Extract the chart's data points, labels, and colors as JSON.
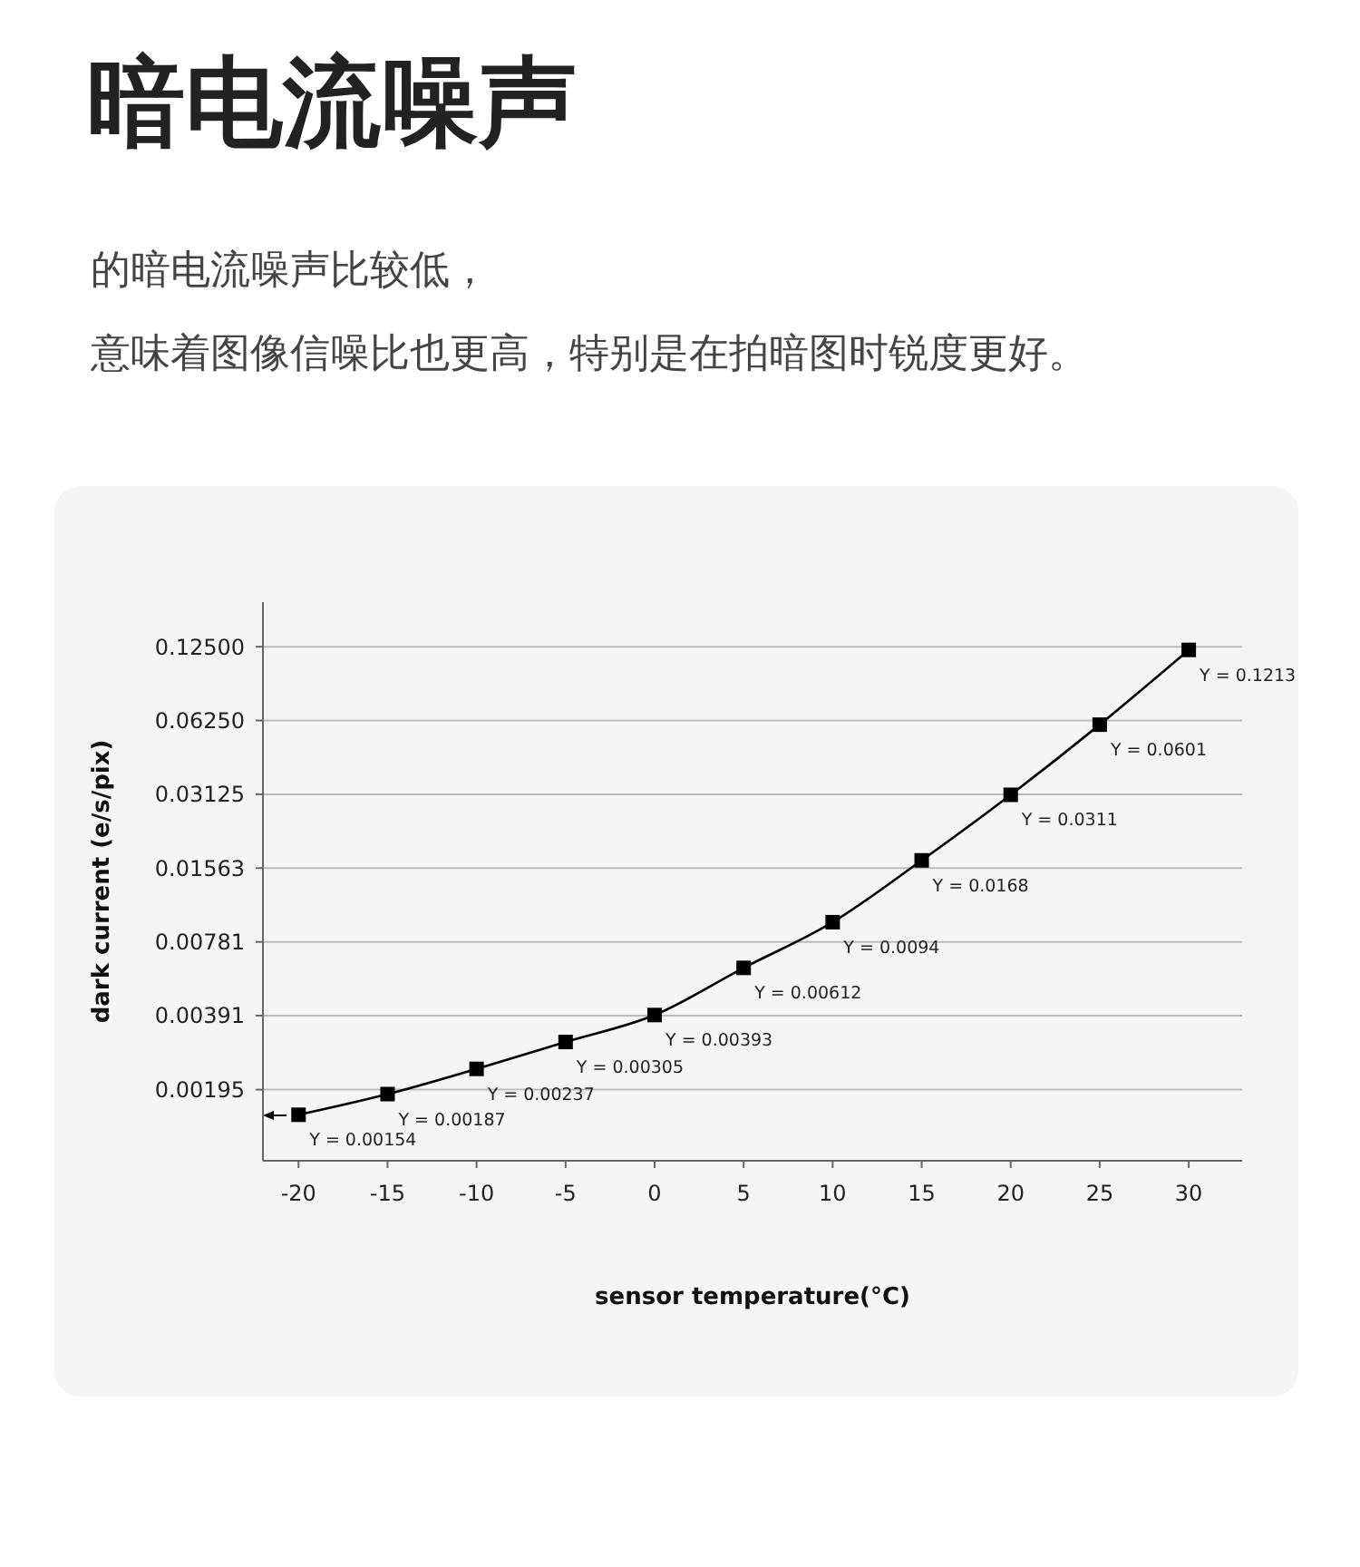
{
  "chart_data": {
    "type": "line",
    "title": "暗电流噪声",
    "subtitle": "的暗电流噪声比较低，",
    "annotations": [
      "意味着图像信噪比也更高，特别是在拍暗图时锐度更好。"
    ],
    "xlabel": "sensor temperature(°C)",
    "ylabel": "dark current (e/s/pix)",
    "x": [
      -20,
      -15,
      -10,
      -5,
      0,
      5,
      10,
      15,
      20,
      25,
      30
    ],
    "series": [
      {
        "color": "#000000",
        "values": [
          0.00154,
          0.00187,
          0.00237,
          0.00305,
          0.00393,
          0.00612,
          0.0094,
          0.0168,
          0.0311,
          0.0601,
          0.1213
        ],
        "value_labels": [
          "Y = 0.00154",
          "Y = 0.00187",
          "Y = 0.00237",
          "Y = 0.00305",
          "Y = 0.00393",
          "Y = 0.00612",
          "Y = 0.0094",
          "Y = 0.0168",
          "Y = 0.0311",
          "Y = 0.0601",
          "Y = 0.1213"
        ]
      }
    ],
    "log": "y",
    "xlim": [
      -22,
      33
    ],
    "ylim": [
      0.001,
      0.19
    ],
    "xticks": [
      -20,
      -15,
      -10,
      -5,
      0,
      5,
      10,
      15,
      20,
      25,
      30
    ],
    "yticks": [
      0.00195,
      0.00391,
      0.00781,
      0.01563,
      0.03125,
      {
        "value": 0.0625,
        "label": "0.06250"
      },
      {
        "value": 0.125,
        "label": "0.12500"
      }
    ],
    "grid": "y",
    "marker": "square",
    "line_style": "solid"
  }
}
